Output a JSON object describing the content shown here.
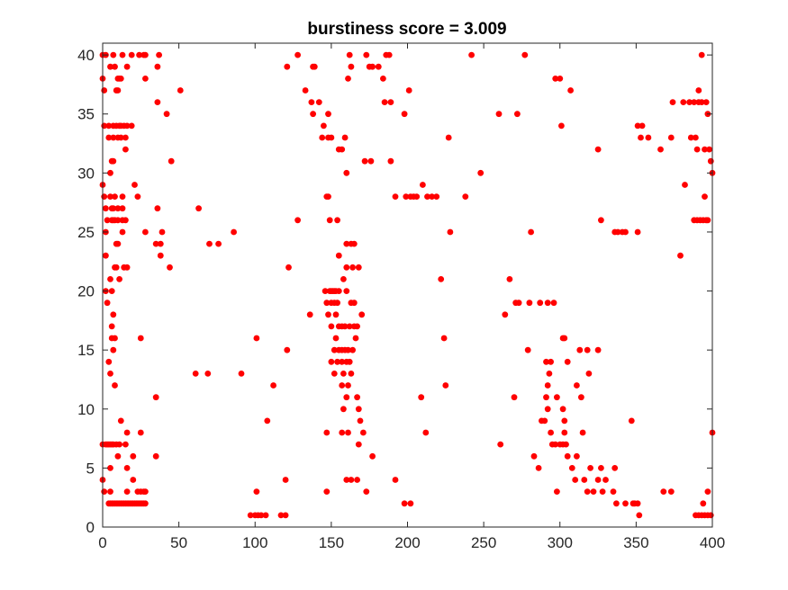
{
  "chart_data": {
    "type": "scatter",
    "title": "burstiness score = 3.009",
    "xlabel": "",
    "ylabel": "",
    "xlim": [
      0,
      400
    ],
    "ylim": [
      0,
      41
    ],
    "xticks": [
      "0",
      "50",
      "100",
      "150",
      "200",
      "250",
      "300",
      "350",
      "400"
    ],
    "yticks": [
      "0",
      "5",
      "10",
      "15",
      "20",
      "25",
      "30",
      "35",
      "40"
    ],
    "grid": false,
    "legend": "none",
    "marker_color": "#ff0000",
    "points": [
      [
        0,
        40
      ],
      [
        0,
        38
      ],
      [
        1,
        37
      ],
      [
        1,
        34
      ],
      [
        0,
        29
      ],
      [
        1,
        28
      ],
      [
        2,
        27
      ],
      [
        3,
        26
      ],
      [
        4,
        34
      ],
      [
        4,
        33
      ],
      [
        5,
        30
      ],
      [
        5,
        28
      ],
      [
        6,
        31
      ],
      [
        6,
        27
      ],
      [
        6,
        26
      ],
      [
        7,
        34
      ],
      [
        7,
        33
      ],
      [
        7,
        31
      ],
      [
        7,
        27
      ],
      [
        7,
        26
      ],
      [
        8,
        28
      ],
      [
        8,
        26
      ],
      [
        9,
        34
      ],
      [
        10,
        33
      ],
      [
        10,
        27
      ],
      [
        10,
        26
      ],
      [
        11,
        34
      ],
      [
        12,
        34
      ],
      [
        12,
        33
      ],
      [
        13,
        28
      ],
      [
        13,
        27
      ],
      [
        13,
        26
      ],
      [
        14,
        34
      ],
      [
        15,
        32
      ],
      [
        15,
        33
      ],
      [
        15,
        26
      ],
      [
        16,
        34
      ],
      [
        19,
        34
      ],
      [
        21,
        29
      ],
      [
        23,
        28
      ],
      [
        2,
        25
      ],
      [
        2,
        23
      ],
      [
        2,
        20
      ],
      [
        3,
        19
      ],
      [
        4,
        14
      ],
      [
        5,
        13
      ],
      [
        5,
        21
      ],
      [
        6,
        20
      ],
      [
        6,
        17
      ],
      [
        6,
        16
      ],
      [
        7,
        18
      ],
      [
        7,
        15
      ],
      [
        8,
        22
      ],
      [
        8,
        16
      ],
      [
        8,
        12
      ],
      [
        9,
        22
      ],
      [
        9,
        24
      ],
      [
        10,
        24
      ],
      [
        11,
        21
      ],
      [
        12,
        9
      ],
      [
        13,
        25
      ],
      [
        14,
        22
      ],
      [
        16,
        22
      ],
      [
        2,
        40
      ],
      [
        5,
        39
      ],
      [
        7,
        40
      ],
      [
        8,
        39
      ],
      [
        9,
        37
      ],
      [
        10,
        37
      ],
      [
        10,
        38
      ],
      [
        11,
        38
      ],
      [
        12,
        38
      ],
      [
        13,
        40
      ],
      [
        16,
        39
      ],
      [
        19,
        40
      ],
      [
        24,
        40
      ],
      [
        27,
        40
      ],
      [
        28,
        40
      ],
      [
        28,
        38
      ],
      [
        36,
        39
      ],
      [
        37,
        40
      ],
      [
        36,
        36
      ],
      [
        42,
        35
      ],
      [
        51,
        37
      ],
      [
        45,
        31
      ],
      [
        0,
        7
      ],
      [
        0,
        4
      ],
      [
        1,
        3
      ],
      [
        2,
        7
      ],
      [
        3,
        7
      ],
      [
        4,
        7
      ],
      [
        5,
        7
      ],
      [
        6,
        7
      ],
      [
        7,
        7
      ],
      [
        9,
        7
      ],
      [
        10,
        6
      ],
      [
        11,
        7
      ],
      [
        15,
        7
      ],
      [
        16,
        5
      ],
      [
        16,
        3
      ],
      [
        16,
        8
      ],
      [
        4,
        2
      ],
      [
        5,
        5
      ],
      [
        5,
        3
      ],
      [
        5,
        2
      ],
      [
        6,
        2
      ],
      [
        7,
        2
      ],
      [
        8,
        2
      ],
      [
        9,
        2
      ],
      [
        10,
        2
      ],
      [
        11,
        2
      ],
      [
        12,
        2
      ],
      [
        13,
        2
      ],
      [
        14,
        2
      ],
      [
        15,
        2
      ],
      [
        16,
        2
      ],
      [
        17,
        2
      ],
      [
        18,
        2
      ],
      [
        19,
        2
      ],
      [
        20,
        2
      ],
      [
        21,
        2
      ],
      [
        22,
        2
      ],
      [
        23,
        2
      ],
      [
        24,
        2
      ],
      [
        25,
        2
      ],
      [
        26,
        2
      ],
      [
        27,
        2
      ],
      [
        28,
        2
      ],
      [
        23,
        3
      ],
      [
        25,
        3
      ],
      [
        27,
        3
      ],
      [
        28,
        3
      ],
      [
        25,
        8
      ],
      [
        20,
        6
      ],
      [
        20,
        4
      ],
      [
        35,
        6
      ],
      [
        25,
        16
      ],
      [
        35,
        11
      ],
      [
        36,
        27
      ],
      [
        28,
        25
      ],
      [
        35,
        24
      ],
      [
        38,
        23
      ],
      [
        39,
        25
      ],
      [
        38,
        24
      ],
      [
        44,
        22
      ],
      [
        63,
        27
      ],
      [
        61,
        13
      ],
      [
        69,
        13
      ],
      [
        70,
        24
      ],
      [
        76,
        24
      ],
      [
        86,
        25
      ],
      [
        91,
        13
      ],
      [
        101,
        16
      ],
      [
        108,
        9
      ],
      [
        112,
        12
      ],
      [
        101,
        3
      ],
      [
        97,
        1
      ],
      [
        100,
        1
      ],
      [
        102,
        1
      ],
      [
        104,
        1
      ],
      [
        107,
        1
      ],
      [
        117,
        1
      ],
      [
        120,
        1
      ],
      [
        120,
        4
      ],
      [
        122,
        22
      ],
      [
        121,
        15
      ],
      [
        121,
        39
      ],
      [
        128,
        40
      ],
      [
        128,
        26
      ],
      [
        133,
        37
      ],
      [
        136,
        18
      ],
      [
        137,
        36
      ],
      [
        138,
        39
      ],
      [
        139,
        39
      ],
      [
        138,
        35
      ],
      [
        142,
        36
      ],
      [
        144,
        33
      ],
      [
        145,
        34
      ],
      [
        148,
        35
      ],
      [
        148,
        33
      ],
      [
        150,
        33
      ],
      [
        147,
        28
      ],
      [
        148,
        28
      ],
      [
        149,
        26
      ],
      [
        154,
        26
      ],
      [
        146,
        20
      ],
      [
        149,
        20
      ],
      [
        150,
        20
      ],
      [
        151,
        20
      ],
      [
        152,
        20
      ],
      [
        153,
        20
      ],
      [
        155,
        20
      ],
      [
        147,
        19
      ],
      [
        150,
        19
      ],
      [
        152,
        19
      ],
      [
        154,
        19
      ],
      [
        148,
        18
      ],
      [
        153,
        18
      ],
      [
        150,
        17
      ],
      [
        155,
        17
      ],
      [
        157,
        17
      ],
      [
        155,
        23
      ],
      [
        158,
        21
      ],
      [
        160,
        24
      ],
      [
        163,
        24
      ],
      [
        165,
        24
      ],
      [
        160,
        22
      ],
      [
        164,
        22
      ],
      [
        168,
        22
      ],
      [
        160,
        20
      ],
      [
        163,
        19
      ],
      [
        165,
        19
      ],
      [
        159,
        17
      ],
      [
        162,
        17
      ],
      [
        165,
        17
      ],
      [
        167,
        17
      ],
      [
        170,
        18
      ],
      [
        166,
        16
      ],
      [
        153,
        16
      ],
      [
        152,
        15
      ],
      [
        155,
        15
      ],
      [
        157,
        15
      ],
      [
        159,
        15
      ],
      [
        161,
        15
      ],
      [
        164,
        15
      ],
      [
        150,
        14
      ],
      [
        154,
        14
      ],
      [
        157,
        14
      ],
      [
        160,
        14
      ],
      [
        162,
        14
      ],
      [
        158,
        13
      ],
      [
        163,
        13
      ],
      [
        152,
        13
      ],
      [
        157,
        12
      ],
      [
        161,
        12
      ],
      [
        160,
        11
      ],
      [
        158,
        10
      ],
      [
        167,
        11
      ],
      [
        168,
        10
      ],
      [
        169,
        9
      ],
      [
        171,
        8
      ],
      [
        168,
        7
      ],
      [
        147,
        8
      ],
      [
        157,
        8
      ],
      [
        161,
        8
      ],
      [
        147,
        3
      ],
      [
        160,
        4
      ],
      [
        163,
        4
      ],
      [
        167,
        4
      ],
      [
        173,
        3
      ],
      [
        177,
        6
      ],
      [
        162,
        40
      ],
      [
        163,
        39
      ],
      [
        161,
        38
      ],
      [
        155,
        32
      ],
      [
        157,
        32
      ],
      [
        159,
        33
      ],
      [
        160,
        30
      ],
      [
        172,
        31
      ],
      [
        176,
        31
      ],
      [
        173,
        40
      ],
      [
        175,
        39
      ],
      [
        177,
        39
      ],
      [
        181,
        39
      ],
      [
        184,
        38
      ],
      [
        186,
        40
      ],
      [
        188,
        40
      ],
      [
        185,
        36
      ],
      [
        189,
        31
      ],
      [
        189,
        36
      ],
      [
        198,
        35
      ],
      [
        201,
        37
      ],
      [
        192,
        28
      ],
      [
        199,
        28
      ],
      [
        202,
        28
      ],
      [
        204,
        28
      ],
      [
        206,
        28
      ],
      [
        210,
        29
      ],
      [
        213,
        28
      ],
      [
        216,
        28
      ],
      [
        219,
        28
      ],
      [
        192,
        4
      ],
      [
        198,
        2
      ],
      [
        202,
        2
      ],
      [
        209,
        11
      ],
      [
        212,
        8
      ],
      [
        222,
        21
      ],
      [
        224,
        16
      ],
      [
        225,
        12
      ],
      [
        228,
        25
      ],
      [
        227,
        33
      ],
      [
        238,
        28
      ],
      [
        242,
        40
      ],
      [
        248,
        30
      ],
      [
        260,
        35
      ],
      [
        261,
        7
      ],
      [
        264,
        18
      ],
      [
        267,
        21
      ],
      [
        270,
        11
      ],
      [
        271,
        19
      ],
      [
        273,
        19
      ],
      [
        272,
        35
      ],
      [
        277,
        40
      ],
      [
        279,
        15
      ],
      [
        280,
        19
      ],
      [
        281,
        25
      ],
      [
        287,
        19
      ],
      [
        290,
        9
      ],
      [
        292,
        19
      ],
      [
        291,
        14
      ],
      [
        292,
        12
      ],
      [
        293,
        13
      ],
      [
        294,
        14
      ],
      [
        296,
        19
      ],
      [
        283,
        6
      ],
      [
        286,
        5
      ],
      [
        288,
        9
      ],
      [
        291,
        11
      ],
      [
        292,
        10
      ],
      [
        294,
        8
      ],
      [
        295,
        7
      ],
      [
        297,
        7
      ],
      [
        298,
        11
      ],
      [
        298,
        3
      ],
      [
        300,
        7
      ],
      [
        302,
        7
      ],
      [
        304,
        7
      ],
      [
        302,
        16
      ],
      [
        303,
        16
      ],
      [
        305,
        14
      ],
      [
        302,
        10
      ],
      [
        303,
        9
      ],
      [
        303,
        8
      ],
      [
        297,
        38
      ],
      [
        300,
        38
      ],
      [
        301,
        34
      ],
      [
        307,
        37
      ],
      [
        305,
        6
      ],
      [
        308,
        5
      ],
      [
        310,
        4
      ],
      [
        311,
        6
      ],
      [
        311,
        12
      ],
      [
        314,
        11
      ],
      [
        313,
        15
      ],
      [
        315,
        8
      ],
      [
        316,
        4
      ],
      [
        318,
        15
      ],
      [
        318,
        3
      ],
      [
        319,
        13
      ],
      [
        320,
        5
      ],
      [
        322,
        3
      ],
      [
        325,
        32
      ],
      [
        327,
        26
      ],
      [
        325,
        15
      ],
      [
        325,
        4
      ],
      [
        327,
        5
      ],
      [
        328,
        3
      ],
      [
        330,
        4
      ],
      [
        335,
        3
      ],
      [
        336,
        5
      ],
      [
        336,
        25
      ],
      [
        338,
        25
      ],
      [
        341,
        25
      ],
      [
        343,
        25
      ],
      [
        337,
        2
      ],
      [
        343,
        2
      ],
      [
        347,
        9
      ],
      [
        348,
        2
      ],
      [
        349,
        2
      ],
      [
        351,
        2
      ],
      [
        352,
        1
      ],
      [
        351,
        25
      ],
      [
        351,
        34
      ],
      [
        354,
        34
      ],
      [
        353,
        33
      ],
      [
        358,
        33
      ],
      [
        366,
        32
      ],
      [
        368,
        3
      ],
      [
        373,
        3
      ],
      [
        373,
        33
      ],
      [
        374,
        36
      ],
      [
        379,
        23
      ],
      [
        381,
        36
      ],
      [
        382,
        29
      ],
      [
        385,
        36
      ],
      [
        386,
        33
      ],
      [
        388,
        36
      ],
      [
        389,
        33
      ],
      [
        391,
        36
      ],
      [
        390,
        32
      ],
      [
        391,
        37
      ],
      [
        388,
        26
      ],
      [
        390,
        26
      ],
      [
        392,
        26
      ],
      [
        394,
        26
      ],
      [
        396,
        26
      ],
      [
        397,
        26
      ],
      [
        395,
        28
      ],
      [
        395,
        32
      ],
      [
        397,
        35
      ],
      [
        398,
        32
      ],
      [
        399,
        31
      ],
      [
        400,
        30
      ],
      [
        393,
        40
      ],
      [
        393,
        36
      ],
      [
        396,
        36
      ],
      [
        389,
        1
      ],
      [
        391,
        1
      ],
      [
        393,
        1
      ],
      [
        395,
        1
      ],
      [
        397,
        1
      ],
      [
        399,
        1
      ],
      [
        394,
        2
      ],
      [
        397,
        3
      ],
      [
        400,
        8
      ]
    ]
  }
}
